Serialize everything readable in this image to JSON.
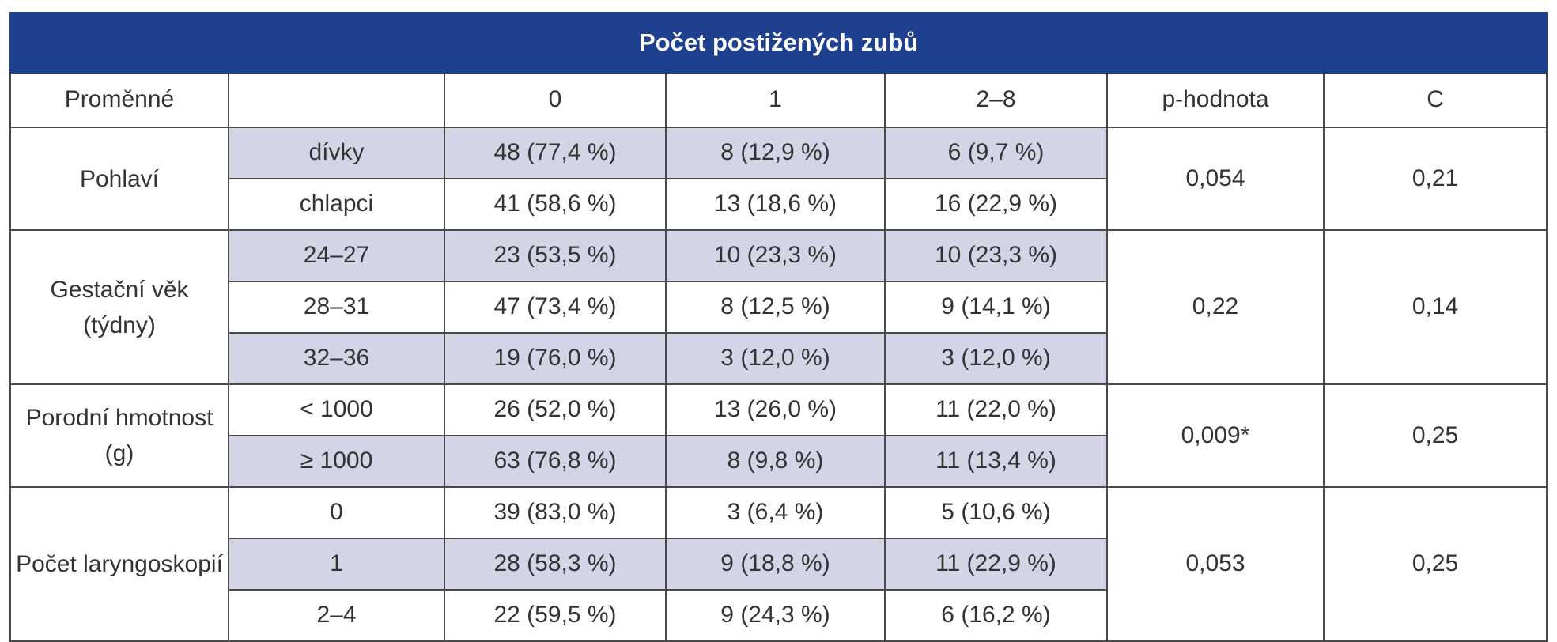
{
  "table": {
    "title": "Počet postižených zubů",
    "headers": [
      "Proměnné",
      "",
      "0",
      "1",
      "2–8",
      "p-hodnota",
      "C"
    ],
    "groups": [
      {
        "variable": "Pohlaví",
        "p_value": "0,054",
        "c": "0,21",
        "rows": [
          {
            "label": "dívky",
            "c0": "48 (77,4 %)",
            "c1": "8 (12,9 %)",
            "c2": "6 (9,7 %)"
          },
          {
            "label": "chlapci",
            "c0": "41 (58,6 %)",
            "c1": "13 (18,6 %)",
            "c2": "16 (22,9 %)"
          }
        ]
      },
      {
        "variable": "Gestační věk (týdny)",
        "p_value": "0,22",
        "c": "0,14",
        "rows": [
          {
            "label": "24–27",
            "c0": "23 (53,5 %)",
            "c1": "10 (23,3 %)",
            "c2": "10 (23,3 %)"
          },
          {
            "label": "28–31",
            "c0": "47 (73,4 %)",
            "c1": "8 (12,5 %)",
            "c2": "9 (14,1 %)"
          },
          {
            "label": "32–36",
            "c0": "19 (76,0 %)",
            "c1": "3 (12,0  %)",
            "c2": "3 (12,0 %)"
          }
        ]
      },
      {
        "variable": "Porodní hmotnost (g)",
        "p_value": "0,009*",
        "c": "0,25",
        "rows": [
          {
            "label": "< 1000",
            "c0": "26 (52,0 %)",
            "c1": "13 (26,0 %)",
            "c2": "11 (22,0 %)"
          },
          {
            "label": "≥ 1000",
            "c0": "63 (76,8 %)",
            "c1": "8 (9,8 %)",
            "c2": "11 (13,4 %)"
          }
        ]
      },
      {
        "variable": "Počet laryngoskopií",
        "p_value": "0,053",
        "c": "0,25",
        "rows": [
          {
            "label": "0",
            "c0": "39 (83,0 %)",
            "c1": "3 (6,4 %)",
            "c2": "5 (10,6 %)"
          },
          {
            "label": "1",
            "c0": "28 (58,3 %)",
            "c1": "9 (18,8 %)",
            "c2": "11 (22,9 %)"
          },
          {
            "label": "2–4",
            "c0": "22 (59,5 %)",
            "c1": "9 (24,3 %)",
            "c2": "6 (16,2 %)"
          }
        ]
      }
    ]
  },
  "colors": {
    "banner": "#1f3f8f",
    "shade": "#d3d4e6",
    "border": "#4a4a4a",
    "text": "#333333"
  }
}
